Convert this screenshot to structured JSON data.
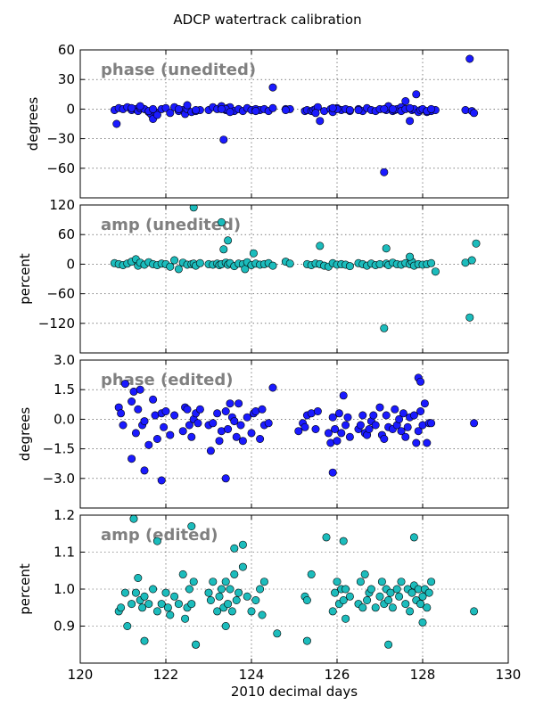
{
  "figure": {
    "title": "ADCP watertrack calibration"
  },
  "chart_data": [
    {
      "type": "scatter",
      "annotation": "phase (unedited)",
      "ylabel": "degrees",
      "xlabel": "",
      "xlim": [
        120,
        130
      ],
      "ylim": [
        -90,
        60
      ],
      "xticks": [
        120,
        122,
        124,
        126,
        128,
        130
      ],
      "xticklabels": [],
      "yticks": [
        60,
        30,
        0,
        -30,
        -60
      ],
      "yticklabels": [
        "60",
        "30",
        "0",
        "−30",
        "−60"
      ],
      "grid": true,
      "color": "#1a1aff",
      "series": [
        {
          "x": [
            120.8,
            120.85,
            120.9,
            121.0,
            121.1,
            121.2,
            121.3,
            121.35,
            121.4,
            121.5,
            121.6,
            121.65,
            121.7,
            121.75,
            121.8,
            121.9,
            122.0,
            122.1,
            122.2,
            122.3,
            122.4,
            122.45,
            122.5,
            122.6,
            122.7,
            122.8,
            123.0,
            123.1,
            123.2,
            123.3,
            123.35,
            123.4,
            123.45,
            123.5,
            123.6,
            123.7,
            123.8,
            123.9,
            124.0,
            124.1,
            124.2,
            124.3,
            124.4,
            124.5,
            124.8,
            124.9,
            125.25,
            125.3,
            125.4,
            125.45,
            125.5,
            125.55,
            125.6,
            125.7,
            125.85,
            125.9,
            126.0,
            126.1,
            126.2,
            126.3,
            126.5,
            126.6,
            126.7,
            126.8,
            126.9,
            127.0,
            127.1,
            127.15,
            127.2,
            127.3,
            127.35,
            127.4,
            127.5,
            127.6,
            127.7,
            127.75,
            127.8,
            127.85,
            127.9,
            127.95,
            128.0,
            128.1,
            128.2,
            128.3,
            129.0,
            129.1,
            129.15,
            129.2,
            121.2,
            121.4,
            121.6,
            121.7,
            122.5,
            122.7,
            123.4,
            123.5,
            124.5,
            125.5,
            126.0,
            126.5,
            127.1,
            127.5,
            127.6,
            127.7,
            128.1,
            123.3,
            124.1,
            125.9,
            126.3,
            128.2,
            122.3,
            124.8,
            127.3
          ],
          "y": [
            -1,
            -15,
            1,
            0,
            2,
            -1,
            0,
            -2,
            1,
            0,
            -3,
            -5,
            -10,
            -3,
            -6,
            0,
            1,
            -4,
            2,
            -2,
            -1,
            -5,
            0,
            -3,
            -2,
            -1,
            -1,
            2,
            0,
            3,
            -31,
            -1,
            1,
            2,
            -2,
            0,
            -2,
            1,
            -1,
            0,
            -1,
            0,
            -2,
            1,
            0,
            0,
            -2,
            -1,
            -2,
            -1,
            0,
            2,
            -12,
            -2,
            0,
            -3,
            1,
            -1,
            0,
            -2,
            0,
            -2,
            1,
            -1,
            -2,
            0,
            -64,
            -1,
            3,
            -2,
            -1,
            0,
            2,
            8,
            -12,
            -1,
            0,
            15,
            -3,
            -1,
            0,
            -3,
            -2,
            -1,
            -1,
            51,
            -2,
            -4,
            1,
            3,
            -2,
            0,
            4,
            -1,
            0,
            -3,
            22,
            -4,
            0,
            -1,
            0,
            -2,
            0,
            1,
            -2,
            0,
            -2,
            1,
            -1,
            0,
            0,
            -1,
            0
          ],
          "name": ""
        }
      ]
    },
    {
      "type": "scatter",
      "annotation": "amp (unedited)",
      "ylabel": "percent",
      "xlabel": "",
      "xlim": [
        120,
        130
      ],
      "ylim": [
        -180,
        120
      ],
      "xticks": [
        120,
        122,
        124,
        126,
        128,
        130
      ],
      "xticklabels": [],
      "yticks": [
        120,
        60,
        0,
        -60,
        -120
      ],
      "yticklabels": [
        "120",
        "60",
        "0",
        "−60",
        "−120"
      ],
      "grid": true,
      "color": "#1cbcbc",
      "series": [
        {
          "x": [
            120.8,
            120.9,
            121.0,
            121.1,
            121.2,
            121.3,
            121.35,
            121.4,
            121.5,
            121.6,
            121.7,
            121.8,
            121.9,
            122.0,
            122.1,
            122.2,
            122.3,
            122.4,
            122.5,
            122.6,
            122.65,
            122.7,
            122.8,
            123.0,
            123.1,
            123.2,
            123.25,
            123.3,
            123.4,
            123.45,
            123.5,
            123.6,
            123.7,
            123.8,
            123.85,
            123.9,
            124.0,
            124.1,
            124.2,
            124.3,
            124.4,
            124.5,
            124.8,
            124.9,
            125.3,
            125.4,
            125.5,
            125.6,
            125.7,
            125.8,
            125.9,
            126.0,
            126.1,
            126.2,
            126.3,
            126.5,
            126.6,
            126.7,
            126.8,
            126.9,
            127.0,
            127.1,
            127.15,
            127.2,
            127.3,
            127.4,
            127.5,
            127.6,
            127.7,
            127.75,
            127.8,
            127.9,
            128.0,
            128.1,
            128.2,
            128.3,
            129.0,
            129.1,
            129.15,
            129.25,
            123.35,
            123.45,
            124.05,
            125.6,
            127.15,
            127.7,
            122.65,
            123.3
          ],
          "y": [
            2,
            0,
            -2,
            1,
            5,
            10,
            -3,
            3,
            -1,
            4,
            0,
            -2,
            1,
            0,
            -5,
            8,
            -10,
            3,
            -1,
            0,
            1,
            -3,
            2,
            0,
            -1,
            1,
            -2,
            0,
            3,
            -1,
            2,
            -4,
            1,
            0,
            -10,
            4,
            -2,
            1,
            -1,
            0,
            2,
            -3,
            5,
            1,
            0,
            -2,
            1,
            0,
            -3,
            -5,
            2,
            -1,
            0,
            -1,
            -4,
            2,
            0,
            -3,
            1,
            -2,
            0,
            -130,
            1,
            -2,
            3,
            0,
            -1,
            2,
            0,
            5,
            -3,
            0,
            -1,
            0,
            2,
            -15,
            3,
            -108,
            8,
            42,
            30,
            48,
            22,
            37,
            32,
            15,
            115,
            85
          ],
          "name": ""
        }
      ]
    },
    {
      "type": "scatter",
      "annotation": "phase (edited)",
      "ylabel": "degrees",
      "xlabel": "",
      "xlim": [
        120,
        130
      ],
      "ylim": [
        -4.5,
        3.0
      ],
      "xticks": [
        120,
        122,
        124,
        126,
        128,
        130
      ],
      "xticklabels": [],
      "yticks": [
        3.0,
        1.5,
        0.0,
        -1.5,
        -3.0
      ],
      "yticklabels": [
        "3.0",
        "1.5",
        "0.0",
        "−1.5",
        "−3.0"
      ],
      "grid": true,
      "color": "#1a1aff",
      "series": [
        {
          "x": [
            120.9,
            120.95,
            121.0,
            121.05,
            121.2,
            121.25,
            121.3,
            121.35,
            121.4,
            121.45,
            121.5,
            121.6,
            121.7,
            121.75,
            121.8,
            121.9,
            121.95,
            122.0,
            122.1,
            122.2,
            122.4,
            122.45,
            122.5,
            122.55,
            122.6,
            122.65,
            122.7,
            122.75,
            122.8,
            123.0,
            123.05,
            123.1,
            123.2,
            123.25,
            123.3,
            123.4,
            123.45,
            123.5,
            123.55,
            123.6,
            123.65,
            123.7,
            123.75,
            123.8,
            123.9,
            124.0,
            124.05,
            124.1,
            124.2,
            124.25,
            124.3,
            124.4,
            124.5,
            125.1,
            125.2,
            125.25,
            125.3,
            125.4,
            125.5,
            125.55,
            125.8,
            125.85,
            125.9,
            125.95,
            126.0,
            126.05,
            126.1,
            126.15,
            126.2,
            126.25,
            126.3,
            126.5,
            126.55,
            126.6,
            126.65,
            126.7,
            126.75,
            126.8,
            126.85,
            126.9,
            127.0,
            127.05,
            127.1,
            127.15,
            127.2,
            127.3,
            127.35,
            127.4,
            127.45,
            127.5,
            127.55,
            127.6,
            127.65,
            127.7,
            127.8,
            127.85,
            127.9,
            127.95,
            128.0,
            128.05,
            128.1,
            128.15,
            128.2,
            129.2,
            121.2,
            121.5,
            121.9,
            123.4,
            125.9,
            127.9,
            127.95
          ],
          "y": [
            0.6,
            0.3,
            -0.3,
            1.8,
            -2.0,
            1.4,
            -0.7,
            0.5,
            1.5,
            -0.3,
            -0.1,
            -1.3,
            1.0,
            0.2,
            -1.0,
            0.3,
            -0.4,
            0.4,
            -0.8,
            0.2,
            -0.6,
            0.6,
            0.5,
            -0.3,
            -0.9,
            0.0,
            0.3,
            -0.2,
            0.5,
            -0.3,
            -1.6,
            -0.2,
            0.3,
            -1.1,
            -0.6,
            0.4,
            -0.5,
            0.8,
            0.1,
            -0.1,
            -0.9,
            0.8,
            -0.3,
            -1.1,
            0.1,
            -0.7,
            0.3,
            0.4,
            -1.0,
            0.5,
            -0.3,
            -0.2,
            1.6,
            -0.6,
            -0.2,
            -0.4,
            0.2,
            0.3,
            -0.5,
            0.4,
            -0.7,
            -1.2,
            0.1,
            -0.5,
            -1.1,
            0.3,
            -0.7,
            1.2,
            -0.3,
            0.1,
            -0.9,
            -0.5,
            -0.3,
            0.2,
            -0.7,
            -0.8,
            -0.5,
            -0.1,
            0.2,
            -0.3,
            0.6,
            -0.8,
            -1.0,
            0.2,
            -0.4,
            -0.5,
            0.5,
            -0.3,
            0.0,
            -0.6,
            0.3,
            -0.9,
            -0.4,
            0.1,
            0.2,
            -1.2,
            -0.6,
            0.4,
            -0.3,
            0.8,
            -1.2,
            -0.2,
            -0.2,
            -0.2,
            0.9,
            -2.6,
            -3.1,
            -3.0,
            -2.7,
            2.1,
            1.9
          ],
          "name": ""
        }
      ]
    },
    {
      "type": "scatter",
      "annotation": "amp (edited)",
      "ylabel": "percent",
      "xlabel": "2010 decimal days",
      "xlim": [
        120,
        130
      ],
      "ylim": [
        0.8,
        1.2
      ],
      "xticks": [
        120,
        122,
        124,
        126,
        128,
        130
      ],
      "xticklabels": [
        "120",
        "122",
        "124",
        "126",
        "128",
        "130"
      ],
      "yticks": [
        1.2,
        1.1,
        1.0,
        0.9
      ],
      "yticklabels": [
        "1.2",
        "1.1",
        "1.0",
        "0.9"
      ],
      "grid": true,
      "color": "#1cbcbc",
      "series": [
        {
          "x": [
            120.9,
            120.95,
            121.05,
            121.1,
            121.2,
            121.3,
            121.35,
            121.4,
            121.45,
            121.5,
            121.6,
            121.7,
            121.8,
            121.9,
            122.0,
            122.05,
            122.1,
            122.2,
            122.3,
            122.4,
            122.45,
            122.5,
            122.55,
            122.6,
            122.65,
            122.7,
            123.0,
            123.05,
            123.1,
            123.2,
            123.25,
            123.3,
            123.35,
            123.4,
            123.45,
            123.5,
            123.55,
            123.6,
            123.65,
            123.7,
            123.8,
            123.9,
            124.0,
            124.1,
            124.2,
            124.25,
            124.3,
            125.25,
            125.3,
            125.4,
            125.9,
            125.95,
            126.0,
            126.05,
            126.1,
            126.15,
            126.2,
            126.3,
            126.5,
            126.55,
            126.6,
            126.65,
            126.7,
            126.75,
            126.8,
            126.9,
            127.0,
            127.05,
            127.1,
            127.15,
            127.2,
            127.25,
            127.3,
            127.4,
            127.45,
            127.5,
            127.6,
            127.65,
            127.7,
            127.75,
            127.8,
            127.85,
            127.9,
            127.95,
            128.0,
            128.05,
            128.1,
            128.15,
            128.2,
            129.2,
            121.25,
            121.8,
            122.6,
            123.6,
            123.8,
            125.75,
            126.15,
            127.8,
            121.5,
            122.7,
            123.4,
            124.6,
            125.3,
            126.2,
            127.2,
            128.0
          ],
          "y": [
            0.94,
            0.95,
            0.99,
            0.9,
            0.96,
            0.99,
            1.03,
            0.97,
            0.95,
            0.98,
            0.96,
            1.0,
            0.94,
            0.96,
            0.99,
            0.95,
            0.93,
            0.98,
            0.96,
            1.04,
            0.92,
            0.95,
            1.0,
            0.96,
            1.02,
            0.85,
            0.99,
            0.97,
            1.02,
            0.94,
            0.98,
            1.0,
            0.95,
            1.02,
            0.96,
            1.0,
            0.94,
            1.04,
            0.97,
            0.99,
            1.06,
            0.98,
            0.94,
            0.97,
            1.0,
            0.93,
            1.02,
            0.98,
            0.97,
            1.04,
            0.94,
            0.99,
            1.02,
            0.96,
            1.0,
            0.97,
            1.0,
            0.98,
            0.96,
            1.02,
            0.95,
            1.04,
            0.97,
            0.99,
            1.0,
            0.95,
            0.98,
            1.02,
            0.96,
            1.0,
            0.97,
            0.99,
            0.95,
            1.0,
            0.98,
            1.02,
            0.96,
            1.0,
            0.94,
            0.99,
            1.01,
            0.97,
            1.0,
            0.96,
            0.98,
            1.0,
            0.95,
            0.99,
            1.02,
            0.94,
            1.19,
            1.13,
            1.17,
            1.11,
            1.12,
            1.14,
            1.13,
            1.14,
            0.86,
            0.85,
            0.9,
            0.88,
            0.86,
            0.92,
            0.85,
            0.91
          ],
          "name": ""
        }
      ]
    }
  ]
}
